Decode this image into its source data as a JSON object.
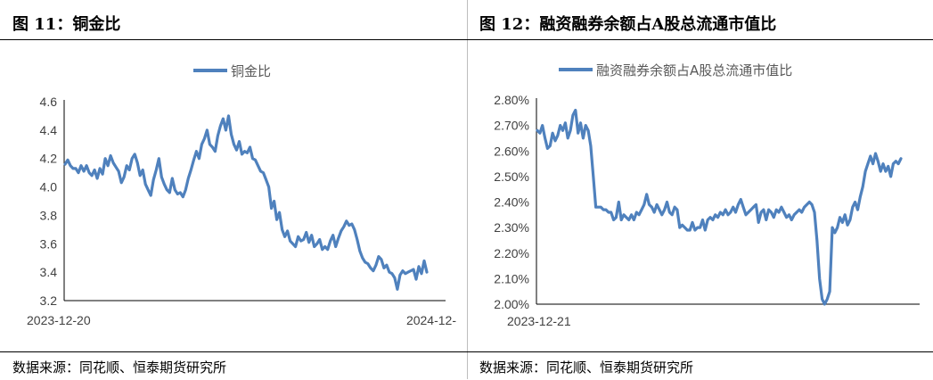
{
  "panels": [
    {
      "title": "图 11：铜金比",
      "source": "数据来源：同花顺、恒泰期货研究所"
    },
    {
      "title": "图 12：融资融券余额占A股总流通市值比",
      "source": "数据来源：同花顺、恒泰期货研究所"
    }
  ],
  "chart_data": [
    {
      "type": "line",
      "legend": "铜金比",
      "line_color": "#4f81bd",
      "ylim": [
        3.2,
        4.6
      ],
      "yticks": [
        "4.6",
        "4.4",
        "4.2",
        "4.0",
        "3.8",
        "3.6",
        "3.4",
        "3.2"
      ],
      "xtick_labels": [
        "2023-12-20",
        "2024-12-"
      ],
      "grid": false,
      "legend_position": "top",
      "series": [
        {
          "values": [
            4.16,
            4.19,
            4.15,
            4.13,
            4.13,
            4.1,
            4.15,
            4.11,
            4.15,
            4.1,
            4.08,
            4.12,
            4.06,
            4.13,
            4.09,
            4.2,
            4.15,
            4.22,
            4.17,
            4.14,
            4.11,
            4.03,
            4.07,
            4.15,
            4.12,
            4.2,
            4.23,
            4.17,
            4.08,
            4.12,
            4.02,
            3.98,
            3.94,
            4.05,
            4.12,
            4.2,
            4.07,
            4.02,
            3.98,
            3.96,
            4.06,
            3.98,
            3.95,
            3.96,
            3.93,
            3.98,
            4.06,
            4.12,
            4.19,
            4.25,
            4.2,
            4.3,
            4.34,
            4.4,
            4.3,
            4.28,
            4.25,
            4.36,
            4.43,
            4.48,
            4.4,
            4.5,
            4.37,
            4.3,
            4.26,
            4.32,
            4.23,
            4.25,
            4.24,
            4.28,
            4.2,
            4.19,
            4.15,
            4.11,
            4.1,
            4.05,
            4.0,
            3.85,
            3.9,
            3.77,
            3.82,
            3.7,
            3.65,
            3.69,
            3.62,
            3.6,
            3.58,
            3.65,
            3.62,
            3.63,
            3.68,
            3.61,
            3.66,
            3.58,
            3.6,
            3.63,
            3.56,
            3.58,
            3.56,
            3.62,
            3.66,
            3.58,
            3.64,
            3.69,
            3.72,
            3.76,
            3.73,
            3.74,
            3.7,
            3.63,
            3.55,
            3.5,
            3.47,
            3.46,
            3.43,
            3.41,
            3.45,
            3.51,
            3.49,
            3.43,
            3.45,
            3.4,
            3.39,
            3.36,
            3.28,
            3.38,
            3.41,
            3.39,
            3.4,
            3.41,
            3.42,
            3.35,
            3.44,
            3.39,
            3.48,
            3.4
          ]
        }
      ]
    },
    {
      "type": "line",
      "legend": "融资融券余额占A股总流通市值比",
      "line_color": "#4f81bd",
      "ylim": [
        2.0,
        2.8
      ],
      "yticks": [
        "2.80%",
        "2.70%",
        "2.60%",
        "2.50%",
        "2.40%",
        "2.30%",
        "2.20%",
        "2.10%",
        "2.00%"
      ],
      "xtick_labels": [
        "2023-12-21"
      ],
      "grid": false,
      "legend_position": "top",
      "series": [
        {
          "values": [
            2.68,
            2.67,
            2.7,
            2.65,
            2.61,
            2.62,
            2.67,
            2.64,
            2.66,
            2.7,
            2.68,
            2.71,
            2.65,
            2.68,
            2.74,
            2.76,
            2.67,
            2.71,
            2.65,
            2.7,
            2.68,
            2.62,
            2.5,
            2.38,
            2.38,
            2.38,
            2.37,
            2.37,
            2.36,
            2.36,
            2.33,
            2.34,
            2.4,
            2.33,
            2.35,
            2.34,
            2.33,
            2.35,
            2.33,
            2.36,
            2.35,
            2.37,
            2.39,
            2.43,
            2.39,
            2.38,
            2.36,
            2.39,
            2.37,
            2.35,
            2.37,
            2.4,
            2.36,
            2.35,
            2.38,
            2.37,
            2.3,
            2.31,
            2.3,
            2.29,
            2.29,
            2.32,
            2.29,
            2.3,
            2.3,
            2.33,
            2.29,
            2.33,
            2.34,
            2.33,
            2.35,
            2.34,
            2.36,
            2.35,
            2.37,
            2.35,
            2.36,
            2.38,
            2.36,
            2.39,
            2.41,
            2.38,
            2.35,
            2.36,
            2.37,
            2.38,
            2.39,
            2.32,
            2.36,
            2.37,
            2.33,
            2.37,
            2.36,
            2.34,
            2.37,
            2.36,
            2.38,
            2.36,
            2.34,
            2.35,
            2.33,
            2.35,
            2.36,
            2.37,
            2.36,
            2.38,
            2.39,
            2.4,
            2.39,
            2.36,
            2.25,
            2.1,
            2.02,
            2.0,
            2.02,
            2.05,
            2.3,
            2.28,
            2.3,
            2.34,
            2.32,
            2.35,
            2.31,
            2.33,
            2.38,
            2.4,
            2.37,
            2.42,
            2.46,
            2.52,
            2.55,
            2.58,
            2.55,
            2.59,
            2.56,
            2.52,
            2.55,
            2.52,
            2.54,
            2.5,
            2.55,
            2.56,
            2.55,
            2.57
          ]
        }
      ]
    }
  ]
}
